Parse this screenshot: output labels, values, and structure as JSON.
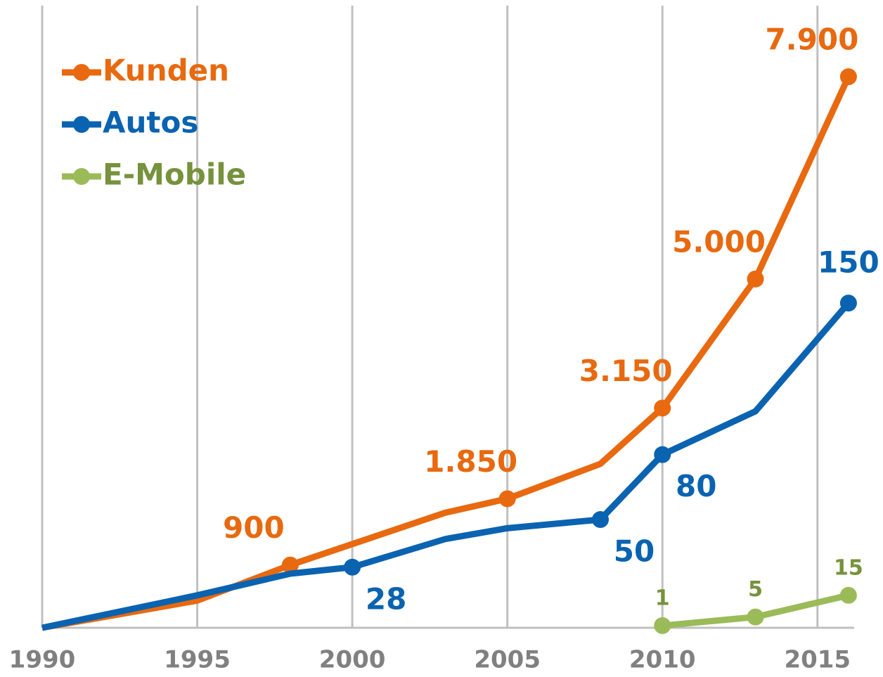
{
  "chart_data": {
    "type": "line",
    "xlim": [
      1990,
      2017
    ],
    "xticks": [
      1990,
      1995,
      2000,
      2005,
      2010,
      2015
    ],
    "ylim": [
      0,
      9000
    ],
    "y2lim": [
      0,
      290
    ],
    "grid": true,
    "legend": "upper left",
    "series": [
      {
        "name": "Kunden",
        "color": "#e8690f",
        "label_color": "#e8690f",
        "x": [
          1990,
          1995,
          1998,
          2003,
          2005,
          2008,
          2010,
          2013,
          2016
        ],
        "values": [
          0,
          390,
          900,
          1650,
          1850,
          2350,
          3150,
          5000,
          7900
        ],
        "value_labels": [
          null,
          null,
          "900",
          null,
          "1.850",
          null,
          "3.150",
          "5.000",
          "7.900"
        ]
      },
      {
        "name": "Autos",
        "color": "#0a63b0",
        "label_color": "#0a63b0",
        "axis": "y2",
        "x": [
          1990,
          1995,
          1998,
          2000,
          2003,
          2005,
          2008,
          2010,
          2013,
          2016
        ],
        "values": [
          0,
          15,
          25,
          28,
          41,
          46,
          50,
          80,
          100,
          150
        ],
        "value_labels": [
          null,
          null,
          null,
          "28",
          null,
          null,
          "50",
          "80",
          null,
          "150"
        ]
      },
      {
        "name": "E-Mobile",
        "color": "#9bbb59",
        "label_color": "#76923c",
        "axis": "y2",
        "x": [
          2010,
          2013,
          2016
        ],
        "values": [
          1,
          5,
          15
        ],
        "value_labels": [
          "1",
          "5",
          "15"
        ]
      }
    ]
  }
}
